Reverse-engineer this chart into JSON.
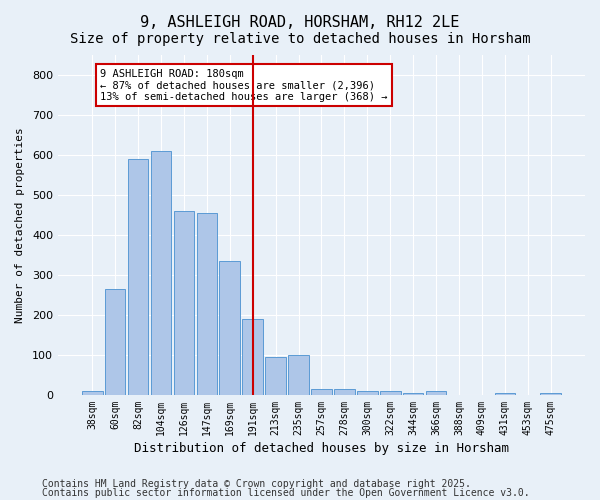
{
  "title": "9, ASHLEIGH ROAD, HORSHAM, RH12 2LE",
  "subtitle": "Size of property relative to detached houses in Horsham",
  "xlabel": "Distribution of detached houses by size in Horsham",
  "ylabel": "Number of detached properties",
  "categories": [
    "38sqm",
    "60sqm",
    "82sqm",
    "104sqm",
    "126sqm",
    "147sqm",
    "169sqm",
    "191sqm",
    "213sqm",
    "235sqm",
    "257sqm",
    "278sqm",
    "300sqm",
    "322sqm",
    "344sqm",
    "366sqm",
    "388sqm",
    "409sqm",
    "431sqm",
    "453sqm",
    "475sqm"
  ],
  "values": [
    10,
    265,
    590,
    610,
    460,
    455,
    335,
    190,
    95,
    100,
    15,
    15,
    10,
    10,
    5,
    10,
    0,
    0,
    5,
    0,
    5
  ],
  "bar_color": "#aec6e8",
  "bar_edge_color": "#5b9bd5",
  "vline_x": 7,
  "vline_color": "#cc0000",
  "annotation_title": "9 ASHLEIGH ROAD: 180sqm",
  "annotation_line1": "← 87% of detached houses are smaller (2,396)",
  "annotation_line2": "13% of semi-detached houses are larger (368) →",
  "annotation_box_color": "#ffffff",
  "annotation_box_edge": "#cc0000",
  "footer1": "Contains HM Land Registry data © Crown copyright and database right 2025.",
  "footer2": "Contains public sector information licensed under the Open Government Licence v3.0.",
  "ylim": [
    0,
    850
  ],
  "yticks": [
    0,
    100,
    200,
    300,
    400,
    500,
    600,
    700,
    800
  ],
  "bg_color": "#e8f0f8",
  "plot_bg_color": "#e8f0f8",
  "title_fontsize": 11,
  "subtitle_fontsize": 10,
  "footer_fontsize": 7
}
